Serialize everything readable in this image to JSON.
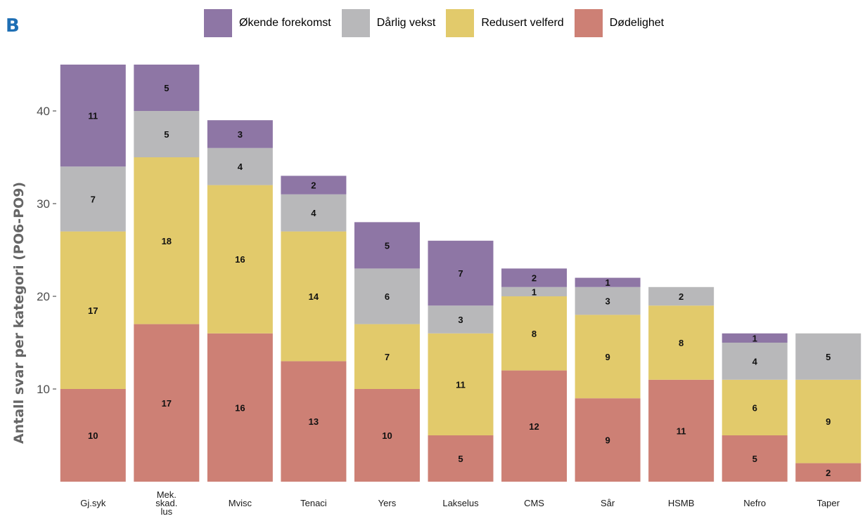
{
  "panel_label": "B",
  "colors": {
    "Økende forekomst": "#8e76a5",
    "Dårlig vekst": "#b8b8ba",
    "Redusert velferd": "#e2ca6b",
    "Dødelighet": "#cd8075"
  },
  "chart_data": {
    "type": "bar",
    "stacked": true,
    "ylabel": "Antall svar per kategori (PO6-PO9)",
    "xlabel": "",
    "ylim": [
      0,
      45
    ],
    "yticks": [
      10,
      20,
      30,
      40
    ],
    "grid": false,
    "legend_position": "top",
    "categories": [
      "Gj.syk",
      "Mek.\nskad.\nlus",
      "Mvisc",
      "Tenaci",
      "Yers",
      "Lakselus",
      "CMS",
      "Sår",
      "HSMB",
      "Nefro",
      "Taper"
    ],
    "series": [
      {
        "name": "Dødelighet",
        "values": [
          10,
          17,
          16,
          13,
          10,
          5,
          12,
          9,
          11,
          5,
          2
        ]
      },
      {
        "name": "Redusert velferd",
        "values": [
          17,
          18,
          16,
          14,
          7,
          11,
          8,
          9,
          8,
          6,
          9
        ]
      },
      {
        "name": "Dårlig vekst",
        "values": [
          7,
          5,
          4,
          4,
          6,
          3,
          1,
          3,
          2,
          4,
          5
        ]
      },
      {
        "name": "Økende forekomst",
        "values": [
          11,
          5,
          3,
          2,
          5,
          7,
          2,
          1,
          0,
          1,
          0
        ]
      }
    ],
    "legend_order": [
      "Økende forekomst",
      "Dårlig vekst",
      "Redusert velferd",
      "Dødelighet"
    ]
  }
}
